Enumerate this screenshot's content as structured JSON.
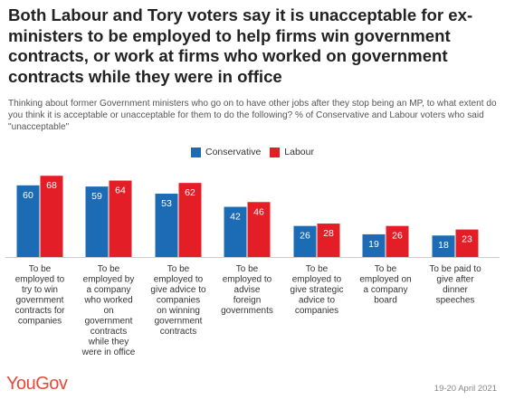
{
  "header": {
    "title": "Both Labour and Tory voters say it is unacceptable for ex-ministers to be employed to help firms win government contracts, or work at firms who worked on government contracts while they were in office",
    "subtitle": "Thinking about former Government ministers who go on to have other jobs after they stop being an MP, to what extent do you think it is acceptable or unacceptable for them to do the following? % of Conservative and Labour voters who said \"unacceptable\""
  },
  "footer": {
    "logo": "YouGov",
    "date": "19-20 April 2021"
  },
  "chart_data": {
    "type": "bar",
    "categories": [
      [
        "To be",
        "employed to",
        "try to win",
        "government",
        "contracts for",
        "companies"
      ],
      [
        "To be",
        "employed by",
        "a company",
        "who worked",
        "on",
        "government",
        "contracts",
        "while they",
        "were in office"
      ],
      [
        "To be",
        "employed to",
        "give advice to",
        "companies",
        "on winning",
        "government",
        "contracts"
      ],
      [
        "To be",
        "employed to",
        "advise",
        "foreign",
        "governments"
      ],
      [
        "To be",
        "employed to",
        "give strategic",
        "advice to",
        "companies"
      ],
      [
        "To be",
        "employed on",
        "a company",
        "board"
      ],
      [
        "To be paid to",
        "give after",
        "dinner",
        "speeches"
      ]
    ],
    "series": [
      {
        "name": "Conservative",
        "color": "#1c6bb5",
        "values": [
          60,
          59,
          53,
          42,
          26,
          19,
          18
        ]
      },
      {
        "name": "Labour",
        "color": "#e31e26",
        "values": [
          68,
          64,
          62,
          46,
          28,
          26,
          23
        ]
      }
    ],
    "ylim": [
      0,
      100
    ],
    "grid": false,
    "legend_position": "top-center",
    "value_labels": true
  }
}
